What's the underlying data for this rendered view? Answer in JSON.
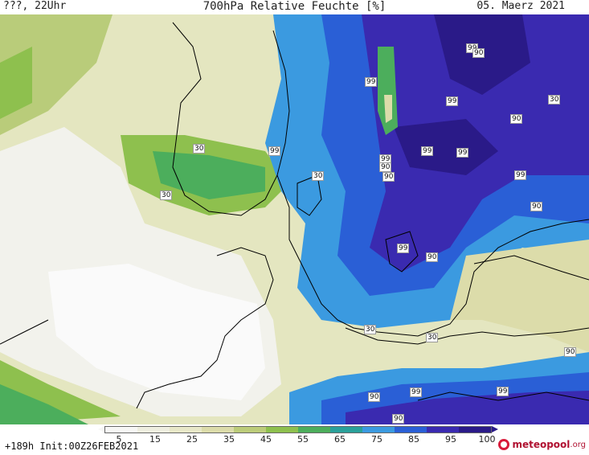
{
  "header": {
    "left": "???, 22Uhr",
    "title": "700hPa Relative Feuchte [%]",
    "date": "05. Maerz 2021"
  },
  "footer": {
    "run_info": "+189h Init:00Z26FEB2021",
    "brand_name": "meteopool",
    "brand_tld": ".org"
  },
  "colorbar": {
    "tick_labels": [
      "5",
      "15",
      "25",
      "35",
      "45",
      "55",
      "65",
      "75",
      "85",
      "95",
      "100"
    ],
    "colors": [
      "#f7f7f5",
      "#eeeee0",
      "#e8e8c8",
      "#dcdcaa",
      "#bccc7a",
      "#8ec04e",
      "#4cae5c",
      "#2aa09a",
      "#3b9ae0",
      "#2a5fd6",
      "#3a2ab0",
      "#2a1a88"
    ]
  },
  "map_labels": [
    {
      "text": "99"
    },
    {
      "text": "90"
    },
    {
      "text": "99"
    },
    {
      "text": "99"
    },
    {
      "text": "30"
    },
    {
      "text": "90"
    },
    {
      "text": "99"
    },
    {
      "text": "99"
    },
    {
      "text": "30"
    },
    {
      "text": "99"
    },
    {
      "text": "99"
    },
    {
      "text": "90"
    },
    {
      "text": "30"
    },
    {
      "text": "90"
    },
    {
      "text": "99"
    },
    {
      "text": "90"
    },
    {
      "text": "99"
    },
    {
      "text": "90"
    },
    {
      "text": "30"
    },
    {
      "text": "30"
    },
    {
      "text": "30"
    },
    {
      "text": "90"
    },
    {
      "text": "90"
    },
    {
      "text": "99"
    },
    {
      "text": "99"
    },
    {
      "text": "90"
    }
  ]
}
